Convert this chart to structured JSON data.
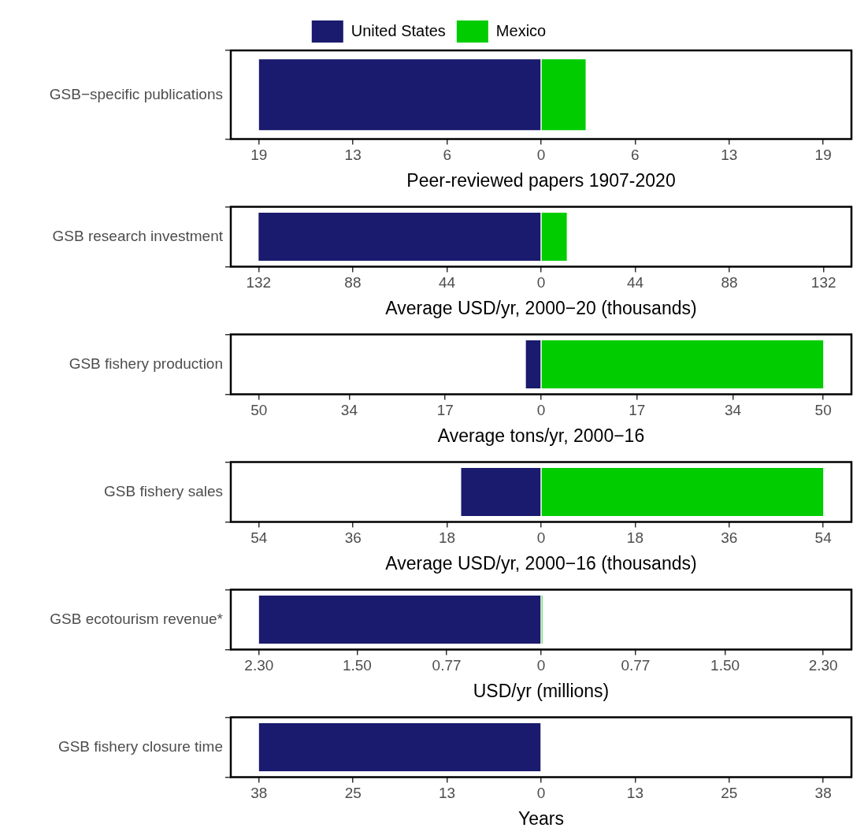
{
  "chart_data": [
    {
      "type": "bar",
      "orientation": "horizontal",
      "stacked": true,
      "legend": "top",
      "grid": false,
      "categories": [
        "GSB−specific publications"
      ],
      "xlabel": "Peer-reviewed papers 1907-2020",
      "xlim": [
        -20.9,
        20.9
      ],
      "xticks": [
        {
          "value": -19,
          "label": "19"
        },
        {
          "value": -12.67,
          "label": "13"
        },
        {
          "value": -6.33,
          "label": "6"
        },
        0,
        {
          "value": 6.33,
          "label": "6"
        },
        {
          "value": 12.67,
          "label": "13"
        },
        19
      ],
      "series": [
        {
          "name": "United States",
          "color": "#1a1a6e",
          "values": [
            -19
          ]
        },
        {
          "name": "Mexico",
          "color": "#00cc00",
          "values": [
            3
          ]
        }
      ]
    },
    {
      "type": "bar",
      "orientation": "horizontal",
      "stacked": true,
      "grid": false,
      "categories": [
        "GSB research investment"
      ],
      "xlabel": "Average USD/yr, 2000−20 (thousands)",
      "xlim": [
        -145,
        145
      ],
      "xticks": [
        {
          "value": -132,
          "label": "132"
        },
        {
          "value": -88,
          "label": "88"
        },
        {
          "value": -44,
          "label": "44"
        },
        0,
        44,
        88,
        132
      ],
      "series": [
        {
          "color": "#1a1a6e",
          "values": [
            -132
          ]
        },
        {
          "color": "#00cc00",
          "values": [
            12
          ]
        }
      ]
    },
    {
      "type": "bar",
      "orientation": "horizontal",
      "stacked": true,
      "grid": false,
      "categories": [
        "GSB fishery production"
      ],
      "xlabel": "Average tons/yr, 2000−16",
      "xlim": [
        -55,
        55
      ],
      "xticks": [
        {
          "value": -50,
          "label": "50"
        },
        {
          "value": -34,
          "label": "34"
        },
        {
          "value": -17,
          "label": "17"
        },
        0,
        17,
        34,
        50
      ],
      "series": [
        {
          "color": "#1a1a6e",
          "values": [
            -2.7
          ]
        },
        {
          "color": "#00cc00",
          "values": [
            50
          ]
        }
      ]
    },
    {
      "type": "bar",
      "orientation": "horizontal",
      "stacked": true,
      "grid": false,
      "categories": [
        "GSB fishery sales"
      ],
      "xlabel": "Average USD/yr, 2000−16 (thousands)",
      "xlim": [
        -59.4,
        59.4
      ],
      "xticks": [
        {
          "value": -54,
          "label": "54"
        },
        {
          "value": -36,
          "label": "36"
        },
        {
          "value": -18,
          "label": "18"
        },
        0,
        18,
        36,
        54
      ],
      "series": [
        {
          "color": "#1a1a6e",
          "values": [
            -15.3
          ]
        },
        {
          "color": "#00cc00",
          "values": [
            54
          ]
        }
      ]
    },
    {
      "type": "bar",
      "orientation": "horizontal",
      "stacked": true,
      "grid": false,
      "categories": [
        "GSB ecotourism revenue*"
      ],
      "xlabel": "USD/yr (millions)",
      "xlim": [
        -2.53,
        2.53
      ],
      "xticks": [
        {
          "value": -2.3,
          "label": "2.30"
        },
        {
          "value": -1.5,
          "label": "1.50"
        },
        {
          "value": -0.77,
          "label": "0.77"
        },
        0,
        0.77,
        {
          "value": 1.5,
          "label": "1.50"
        },
        {
          "value": 2.3,
          "label": "2.30"
        }
      ],
      "series": [
        {
          "color": "#1a1a6e",
          "values": [
            -2.3
          ]
        },
        {
          "color": "#00cc00",
          "values": [
            0.01
          ]
        }
      ]
    },
    {
      "type": "bar",
      "orientation": "horizontal",
      "stacked": true,
      "grid": false,
      "categories": [
        "GSB fishery closure time"
      ],
      "xlabel": "Years",
      "xlim": [
        -41.8,
        41.8
      ],
      "xticks": [
        {
          "value": -38,
          "label": "38"
        },
        {
          "value": -25.33,
          "label": "25"
        },
        {
          "value": -12.67,
          "label": "13"
        },
        0,
        {
          "value": 12.67,
          "label": "13"
        },
        {
          "value": 25.33,
          "label": "25"
        },
        38
      ],
      "series": [
        {
          "color": "#1a1a6e",
          "values": [
            -38
          ]
        },
        {
          "color": "#00cc00",
          "values": [
            0
          ]
        }
      ]
    }
  ]
}
